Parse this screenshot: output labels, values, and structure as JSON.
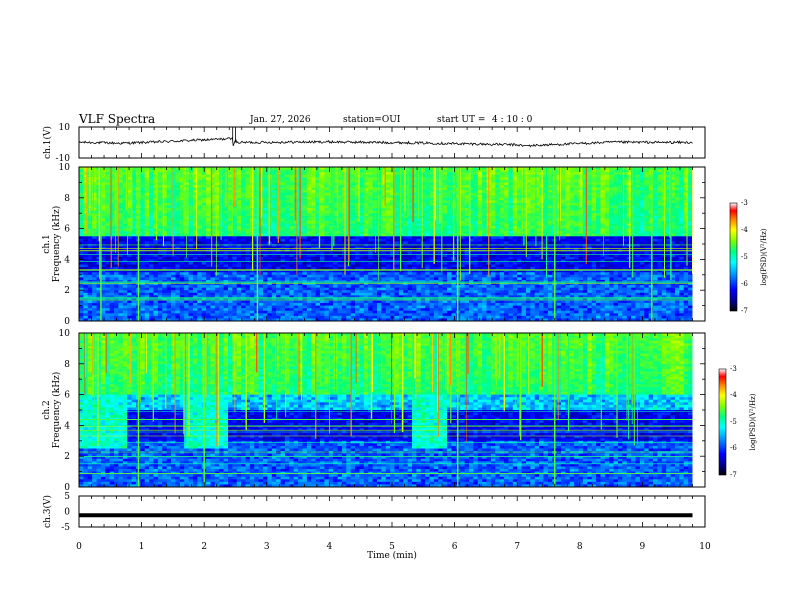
{
  "header": {
    "title": "VLF Spectra",
    "date": "Jan. 27, 2026",
    "station": "station=OUI",
    "start_label": "start  UT =",
    "start_time": "4 : 10 : 0"
  },
  "chart_data": [
    {
      "id": "ch1-waveform",
      "type": "line",
      "ylabel": "ch.1(V)",
      "ylim": [
        -10,
        10
      ],
      "yticks": [
        "10",
        "-10"
      ],
      "xlim": [
        0,
        10
      ],
      "series": [
        {
          "name": "ch.1 amplitude",
          "x": [
            0,
            0.7,
            1.2,
            2.45,
            2.46,
            2.5,
            2.51,
            4.0,
            5.5,
            7.0,
            7.1,
            8.5,
            9.8
          ],
          "y": [
            0.2,
            -0.5,
            0.3,
            2.5,
            -2.0,
            2.8,
            0.0,
            0.4,
            -0.3,
            -1.5,
            -2.2,
            0.2,
            0.0
          ]
        }
      ]
    },
    {
      "id": "ch1-spectrogram",
      "type": "heatmap",
      "ylabel": "Frequency (kHz)",
      "channel_label": "ch.1",
      "ylim": [
        0,
        10
      ],
      "yticks": [
        "0",
        "2",
        "4",
        "6",
        "8",
        "10"
      ],
      "xlim": [
        0,
        10
      ],
      "data_end_min": 9.8,
      "colorbar": {
        "label": "log(PSD)(V²/Hz)",
        "min": -7,
        "max": -3,
        "ticks": [
          "-3",
          "-4",
          "-5",
          "-6",
          "-7"
        ]
      },
      "features": {
        "high_activity_above_kHz": 5.5,
        "quiet_band_kHz": [
          3.2,
          5.5
        ],
        "strong_vertical_times_min": [
          0.35,
          0.95,
          2.85,
          6.05,
          7.6,
          9.15
        ]
      }
    },
    {
      "id": "ch2-spectrogram",
      "type": "heatmap",
      "ylabel": "Frequency (kHz)",
      "channel_label": "ch.2",
      "ylim": [
        0,
        10
      ],
      "yticks": [
        "0",
        "2",
        "4",
        "6",
        "8",
        "10"
      ],
      "xlim": [
        0,
        10
      ],
      "data_end_min": 9.8,
      "colorbar": {
        "label": "log(PSD)(V²/Hz)",
        "min": -7,
        "max": -3,
        "ticks": [
          "-3",
          "-4",
          "-5",
          "-6",
          "-7"
        ]
      },
      "features": {
        "high_activity_above_kHz": 6.0,
        "quiet_band_kHz": [
          3.0,
          5.0
        ],
        "bright_patches_min": [
          [
            0,
            0.8
          ],
          [
            1.65,
            2.4
          ],
          [
            5.3,
            5.9
          ]
        ],
        "strong_vertical_times_min": [
          0.95,
          2.0,
          6.05,
          7.6
        ]
      }
    },
    {
      "id": "ch3-waveform",
      "type": "line",
      "ylabel": "ch.3(V)",
      "ylim": [
        -5,
        5
      ],
      "yticks": [
        "5",
        "0",
        "-5"
      ],
      "xlim": [
        0,
        10
      ],
      "series": [
        {
          "name": "ch.3 amplitude",
          "x": [
            0,
            9.8
          ],
          "y": [
            -1.2,
            -1.2
          ]
        }
      ]
    }
  ],
  "xaxis": {
    "label": "Time (min)",
    "ticks": [
      "0",
      "1",
      "2",
      "3",
      "4",
      "5",
      "6",
      "7",
      "8",
      "9",
      "10"
    ]
  }
}
